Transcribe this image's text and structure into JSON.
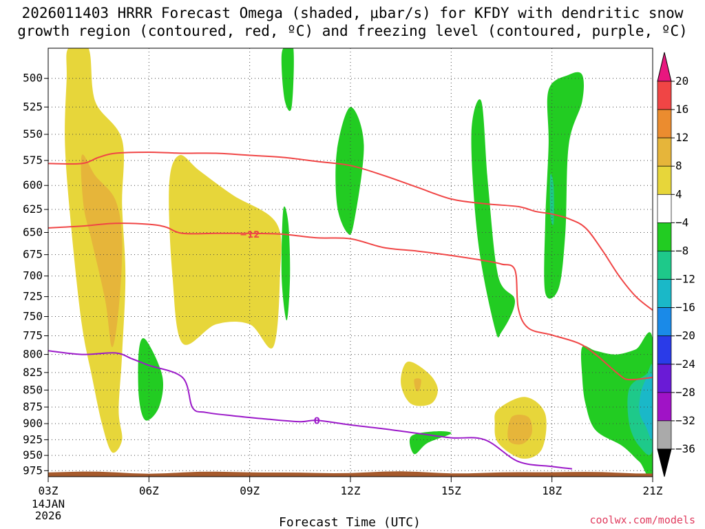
{
  "chart_data": {
    "type": "heatmap",
    "title_line1": "2026011403 HRRR Forecast Omega (shaded, μbar/s) for KFDY with dendritic snow",
    "title_line2": "growth region (contoured, red, ºC) and freezing level (contoured, purple, ºC)",
    "xlabel": "Forecast Time (UTC)",
    "ylabel": "",
    "x_date_line1": "14JAN",
    "x_date_line2": "2026",
    "x_range": [
      3,
      21
    ],
    "x_ticks": [
      3,
      6,
      9,
      12,
      15,
      18,
      21
    ],
    "x_tick_labels": [
      "03Z",
      "06Z",
      "09Z",
      "12Z",
      "15Z",
      "18Z",
      "21Z"
    ],
    "y_range": [
      475,
      985
    ],
    "y_ticks": [
      500,
      525,
      550,
      575,
      600,
      625,
      650,
      675,
      700,
      725,
      750,
      775,
      800,
      825,
      850,
      875,
      900,
      925,
      950,
      975
    ],
    "grid": true,
    "colorbar": {
      "levels": [
        20,
        16,
        12,
        8,
        4,
        -4,
        -8,
        -12,
        -16,
        -20,
        -24,
        -28,
        -32,
        -36
      ],
      "labels": [
        "20",
        "16",
        "12",
        "8",
        "4",
        "−4",
        "−8",
        "−12",
        "−16",
        "−20",
        "−24",
        "−28",
        "−32",
        "−36"
      ],
      "colors": [
        "#e8177f",
        "#f04545",
        "#eb8c2f",
        "#e6b53a",
        "#e7d63a",
        "#ffffff",
        "#22cc22",
        "#1ec98a",
        "#1ab8c8",
        "#1a8ae8",
        "#2a3be8",
        "#6a1bd6",
        "#a013c6",
        "#aaaaaa",
        "#000000"
      ]
    },
    "omega_regions": [
      {
        "name": "upward-4-to-8",
        "color": "#e7d63a",
        "points": [
          [
            3.6,
            475
          ],
          [
            4.2,
            475
          ],
          [
            4.4,
            520
          ],
          [
            5.2,
            555
          ],
          [
            5.2,
            620
          ],
          [
            5.3,
            700
          ],
          [
            5.2,
            800
          ],
          [
            5.1,
            880
          ],
          [
            5.2,
            925
          ],
          [
            4.9,
            945
          ],
          [
            4.6,
            900
          ],
          [
            4.3,
            830
          ],
          [
            4.0,
            760
          ],
          [
            3.7,
            650
          ],
          [
            3.5,
            560
          ],
          [
            3.55,
            500
          ]
        ]
      },
      {
        "name": "upward-8-to-12-a",
        "color": "#e6b53a",
        "points": [
          [
            4.0,
            570
          ],
          [
            4.4,
            590
          ],
          [
            5.0,
            615
          ],
          [
            5.2,
            660
          ],
          [
            5.1,
            740
          ],
          [
            4.9,
            790
          ],
          [
            4.7,
            730
          ],
          [
            4.3,
            660
          ],
          [
            4.05,
            620
          ]
        ]
      },
      {
        "name": "upward-4-to-8-b",
        "color": "#e7d63a",
        "points": [
          [
            6.9,
            570
          ],
          [
            7.5,
            585
          ],
          [
            8.5,
            610
          ],
          [
            9.8,
            640
          ],
          [
            9.9,
            700
          ],
          [
            9.7,
            790
          ],
          [
            9.0,
            760
          ],
          [
            8.0,
            760
          ],
          [
            7.0,
            785
          ],
          [
            6.7,
            700
          ],
          [
            6.6,
            600
          ]
        ]
      },
      {
        "name": "upward-4-to-8-c",
        "color": "#e7d63a",
        "points": [
          [
            13.7,
            810
          ],
          [
            14.3,
            825
          ],
          [
            14.6,
            848
          ],
          [
            14.4,
            870
          ],
          [
            13.8,
            870
          ],
          [
            13.5,
            840
          ]
        ]
      },
      {
        "name": "upward-8-to-12-c",
        "color": "#e6b53a",
        "points": [
          [
            13.9,
            835
          ],
          [
            14.1,
            835
          ],
          [
            14.05,
            850
          ],
          [
            13.95,
            850
          ]
        ]
      },
      {
        "name": "upward-4-to-8-d",
        "color": "#e7d63a",
        "points": [
          [
            16.4,
            878
          ],
          [
            17.2,
            860
          ],
          [
            17.8,
            885
          ],
          [
            17.7,
            940
          ],
          [
            17.1,
            955
          ],
          [
            16.4,
            930
          ],
          [
            16.3,
            900
          ]
        ]
      },
      {
        "name": "upward-8-to-12-d",
        "color": "#e6b53a",
        "points": [
          [
            16.8,
            890
          ],
          [
            17.3,
            890
          ],
          [
            17.4,
            915
          ],
          [
            17.1,
            932
          ],
          [
            16.7,
            925
          ]
        ]
      },
      {
        "name": "downward-4-to-8-a",
        "color": "#22cc22",
        "points": [
          [
            10.0,
            475
          ],
          [
            10.3,
            475
          ],
          [
            10.25,
            525
          ],
          [
            10.05,
            520
          ],
          [
            9.95,
            490
          ]
        ]
      },
      {
        "name": "downward-4-to-8-b",
        "color": "#22cc22",
        "points": [
          [
            10.0,
            625
          ],
          [
            10.15,
            640
          ],
          [
            10.2,
            700
          ],
          [
            10.1,
            755
          ],
          [
            9.95,
            700
          ]
        ]
      },
      {
        "name": "downward-4-to-8-c",
        "color": "#22cc22",
        "points": [
          [
            11.6,
            565
          ],
          [
            12.0,
            525
          ],
          [
            12.4,
            560
          ],
          [
            12.1,
            640
          ],
          [
            11.9,
            650
          ],
          [
            11.6,
            620
          ]
        ]
      },
      {
        "name": "downward-4-to-8-d",
        "color": "#22cc22",
        "points": [
          [
            15.6,
            550
          ],
          [
            15.9,
            520
          ],
          [
            16.1,
            600
          ],
          [
            16.4,
            700
          ],
          [
            16.9,
            730
          ],
          [
            16.5,
            770
          ],
          [
            16.3,
            765
          ],
          [
            15.8,
            660
          ]
        ]
      },
      {
        "name": "downward-4-to-8-e",
        "color": "#22cc22",
        "points": [
          [
            17.9,
            510
          ],
          [
            18.5,
            497
          ],
          [
            18.9,
            497
          ],
          [
            18.9,
            520
          ],
          [
            18.5,
            560
          ],
          [
            18.4,
            650
          ],
          [
            18.2,
            715
          ],
          [
            17.8,
            720
          ],
          [
            17.8,
            640
          ],
          [
            17.9,
            560
          ]
        ]
      },
      {
        "name": "downward-8-to-12-e",
        "color": "#1ec98a",
        "points": [
          [
            17.95,
            590
          ],
          [
            18.05,
            600
          ],
          [
            18.05,
            640
          ],
          [
            17.95,
            630
          ]
        ]
      },
      {
        "name": "downward-4-to-8-f",
        "color": "#22cc22",
        "points": [
          [
            5.7,
            795
          ],
          [
            5.9,
            780
          ],
          [
            6.4,
            830
          ],
          [
            6.3,
            875
          ],
          [
            5.9,
            895
          ],
          [
            5.7,
            860
          ]
        ]
      },
      {
        "name": "downward-4-to-8-g",
        "color": "#22cc22",
        "points": [
          [
            13.8,
            920
          ],
          [
            14.5,
            912
          ],
          [
            15.0,
            915
          ],
          [
            14.3,
            930
          ],
          [
            13.9,
            948
          ]
        ]
      },
      {
        "name": "downward-4-to-8-h",
        "color": "#22cc22",
        "points": [
          [
            18.9,
            790
          ],
          [
            19.3,
            795
          ],
          [
            19.9,
            800
          ],
          [
            20.5,
            793
          ],
          [
            21.0,
            780
          ],
          [
            21.0,
            975
          ],
          [
            20.6,
            960
          ],
          [
            20.1,
            935
          ],
          [
            19.3,
            910
          ],
          [
            19.0,
            870
          ],
          [
            18.9,
            830
          ]
        ]
      },
      {
        "name": "downward-8-to-12-h",
        "color": "#1ec98a",
        "points": [
          [
            20.3,
            848
          ],
          [
            20.8,
            828
          ],
          [
            21.0,
            820
          ],
          [
            21.0,
            940
          ],
          [
            20.6,
            935
          ],
          [
            20.3,
            900
          ]
        ]
      },
      {
        "name": "downward-12-to-16-h",
        "color": "#1ab8c8",
        "points": [
          [
            20.7,
            845
          ],
          [
            21.0,
            830
          ],
          [
            21.0,
            920
          ],
          [
            20.8,
            905
          ],
          [
            20.6,
            880
          ]
        ]
      }
    ],
    "contours": [
      {
        "name": "dgz-top",
        "color": "#f04545",
        "label": "",
        "points": [
          [
            3.0,
            578
          ],
          [
            4.0,
            578
          ],
          [
            4.5,
            572
          ],
          [
            5.0,
            568
          ],
          [
            6.0,
            567
          ],
          [
            7.0,
            568
          ],
          [
            8.0,
            568
          ],
          [
            9.0,
            570
          ],
          [
            10.0,
            572
          ],
          [
            11.0,
            576
          ],
          [
            12.0,
            580
          ],
          [
            13.0,
            590
          ],
          [
            14.0,
            602
          ],
          [
            15.0,
            614
          ],
          [
            16.0,
            619
          ],
          [
            17.0,
            622
          ],
          [
            17.5,
            627
          ],
          [
            18.0,
            630
          ],
          [
            18.5,
            635
          ],
          [
            19.0,
            645
          ],
          [
            19.5,
            670
          ],
          [
            20.0,
            700
          ],
          [
            20.5,
            725
          ],
          [
            21.0,
            742
          ]
        ]
      },
      {
        "name": "dgz-bottom",
        "color": "#f04545",
        "label": "−12",
        "label_at": [
          9.0,
          652
        ],
        "points": [
          [
            3.0,
            645
          ],
          [
            4.0,
            643
          ],
          [
            5.0,
            640
          ],
          [
            6.0,
            641
          ],
          [
            6.5,
            644
          ],
          [
            7.0,
            651
          ],
          [
            8.0,
            651
          ],
          [
            9.0,
            651
          ],
          [
            10.0,
            652
          ],
          [
            11.0,
            656
          ],
          [
            12.0,
            657
          ],
          [
            13.0,
            667
          ],
          [
            14.0,
            671
          ],
          [
            15.0,
            676
          ],
          [
            16.0,
            682
          ],
          [
            16.5,
            686
          ],
          [
            16.9,
            693
          ],
          [
            17.0,
            740
          ],
          [
            17.3,
            765
          ],
          [
            18.0,
            774
          ],
          [
            18.8,
            785
          ],
          [
            19.3,
            800
          ],
          [
            20.0,
            828
          ],
          [
            20.3,
            835
          ],
          [
            21.0,
            832
          ]
        ]
      },
      {
        "name": "freezing-level",
        "color": "#9b19c9",
        "label": "0",
        "label_at": [
          11.0,
          895
        ],
        "points": [
          [
            3.0,
            795
          ],
          [
            4.0,
            800
          ],
          [
            5.0,
            798
          ],
          [
            5.5,
            806
          ],
          [
            6.0,
            815
          ],
          [
            7.0,
            832
          ],
          [
            7.3,
            876
          ],
          [
            7.7,
            883
          ],
          [
            8.5,
            888
          ],
          [
            9.5,
            893
          ],
          [
            10.5,
            897
          ],
          [
            11.0,
            895
          ],
          [
            12.0,
            902
          ],
          [
            13.0,
            908
          ],
          [
            14.0,
            915
          ],
          [
            15.0,
            922
          ],
          [
            16.0,
            925
          ],
          [
            17.0,
            960
          ],
          [
            18.0,
            968
          ],
          [
            18.6,
            972
          ]
        ]
      }
    ],
    "terrain_color": "#a65a2c"
  },
  "credit": "coolwx.com/models"
}
